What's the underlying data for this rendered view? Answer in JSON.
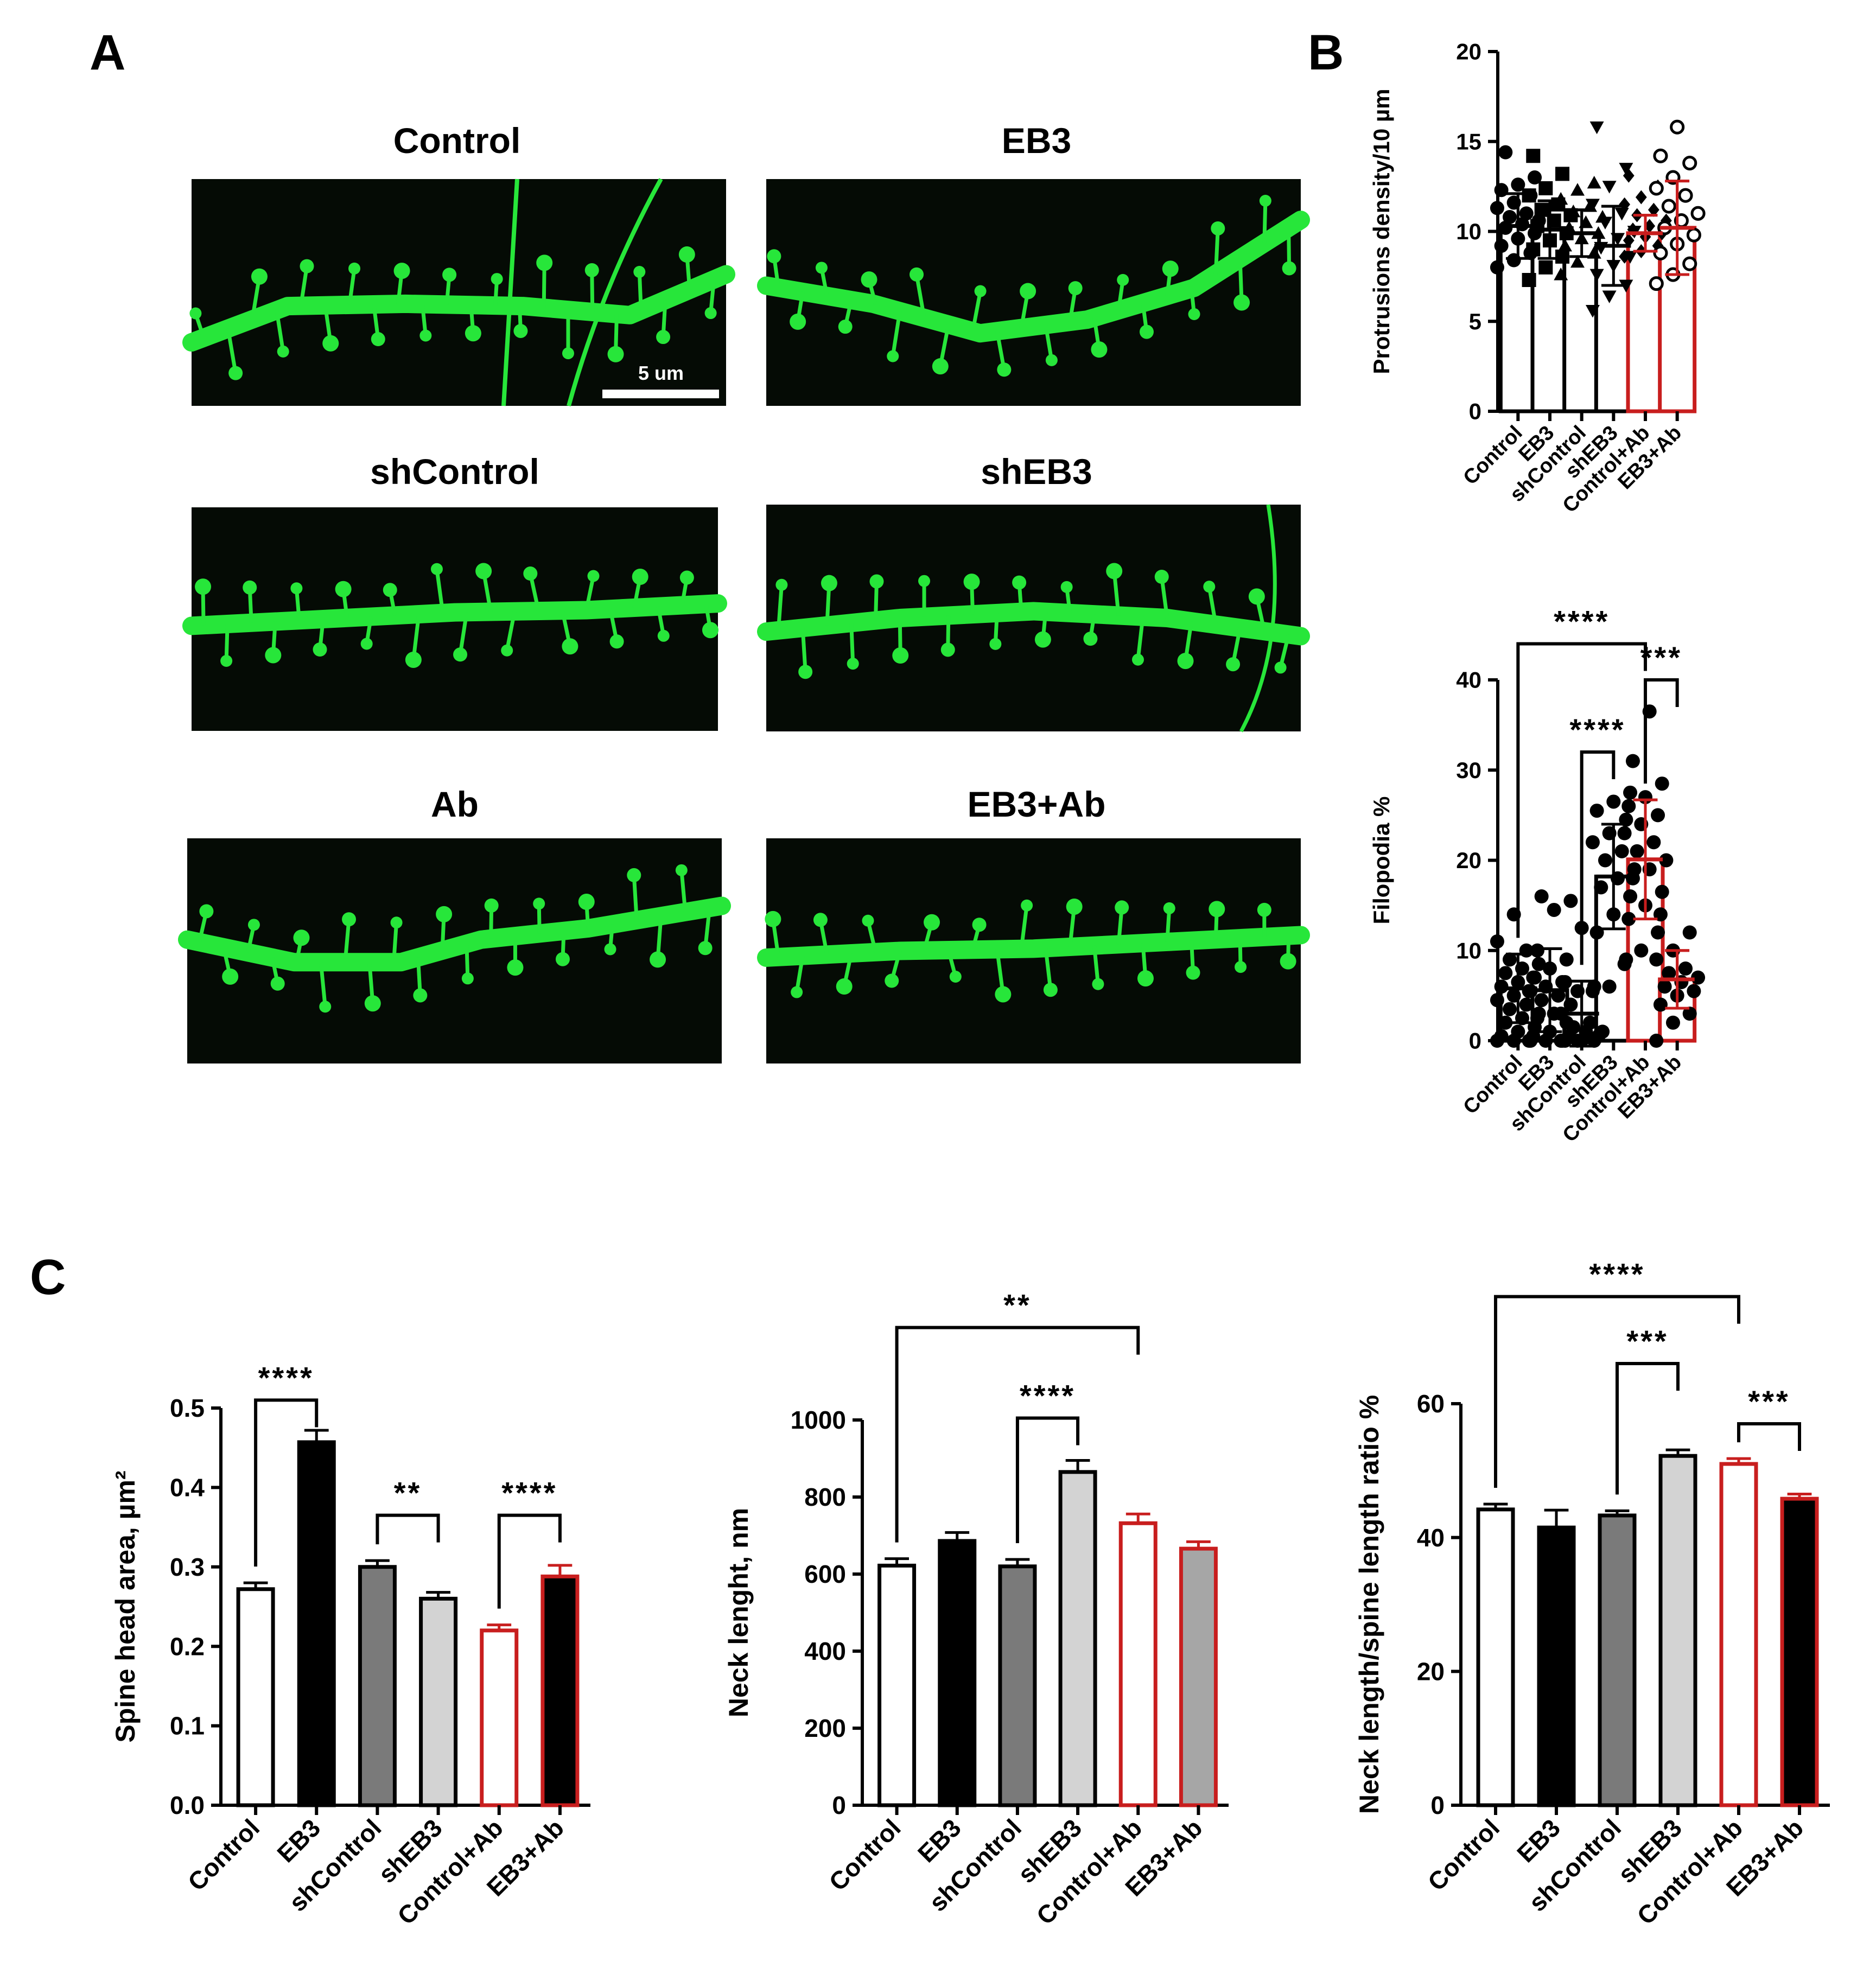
{
  "panels": {
    "A": {
      "letter": "A",
      "images": [
        {
          "label": "Control",
          "scale_bar": "5 um"
        },
        {
          "label": "EB3"
        },
        {
          "label": "shControl"
        },
        {
          "label": "shEB3"
        },
        {
          "label": "Ab"
        },
        {
          "label": "EB3+Ab"
        }
      ]
    },
    "B": {
      "letter": "B"
    },
    "C": {
      "letter": "C"
    }
  },
  "colors": {
    "image_bg": "#050b05",
    "dendrite": "#27e63a",
    "black": "#000000",
    "red": "#c81e1e",
    "white": "#ffffff",
    "dark_gray": "#7a7a7a",
    "light_gray": "#d3d3d3",
    "mid_gray": "#a6a6a6"
  },
  "chart_data": [
    {
      "id": "protrusions",
      "type": "bar",
      "categories": [
        "Control",
        "EB3",
        "shControl",
        "shEB3",
        "Control+Ab",
        "EB3+Ab"
      ],
      "values": [
        10.3,
        10.1,
        9.9,
        9.2,
        9.9,
        10.2
      ],
      "errors": [
        1.8,
        1.6,
        1.3,
        2.2,
        1.0,
        2.6
      ],
      "ylabel": "Protrusions density/10 µm",
      "ylim": [
        0,
        20
      ],
      "yticks": [
        0,
        5,
        10,
        15,
        20
      ],
      "bar_style": [
        "open-black",
        "open-black",
        "open-black",
        "open-black",
        "open-red",
        "open-red"
      ],
      "markers": [
        "circle",
        "square",
        "triangle",
        "triangle-down",
        "diamond",
        "open-circle"
      ],
      "points": [
        [
          8.0,
          8.4,
          8.8,
          9.2,
          9.6,
          9.9,
          10.2,
          10.4,
          10.6,
          10.8,
          11.0,
          11.3,
          11.6,
          12.0,
          12.3,
          12.6,
          13.0,
          14.4
        ],
        [
          7.3,
          8.0,
          8.6,
          9.0,
          9.5,
          9.9,
          10.3,
          10.6,
          10.9,
          11.2,
          11.5,
          12.0,
          12.4,
          13.2,
          14.2
        ],
        [
          7.6,
          8.3,
          8.8,
          9.2,
          9.6,
          9.9,
          10.2,
          10.5,
          10.8,
          11.1,
          11.4,
          11.8,
          12.3,
          12.7
        ],
        [
          5.6,
          6.4,
          7.0,
          7.6,
          8.1,
          8.6,
          9.1,
          9.6,
          10.0,
          10.5,
          11.0,
          11.5,
          12.5,
          13.5,
          15.8
        ],
        [
          8.6,
          8.9,
          9.2,
          9.5,
          9.7,
          9.9,
          10.1,
          10.3,
          10.6,
          10.9,
          11.2,
          11.5,
          11.9,
          12.5,
          13.1
        ],
        [
          7.1,
          7.6,
          8.2,
          8.8,
          9.3,
          9.8,
          10.2,
          10.6,
          11.0,
          11.4,
          12.0,
          12.4,
          13.0,
          13.8,
          14.2,
          15.8
        ]
      ]
    },
    {
      "id": "filopodia",
      "type": "bar",
      "categories": [
        "Control",
        "EB3",
        "shControl",
        "shEB3",
        "Control+Ab",
        "EB3+Ab"
      ],
      "values": [
        5.8,
        5.6,
        3.0,
        18.2,
        20.1,
        6.8
      ],
      "errors": [
        3.8,
        4.6,
        3.6,
        5.8,
        6.6,
        3.2
      ],
      "ylabel": "Filopodia %",
      "ylim": [
        0,
        40
      ],
      "yticks": [
        0,
        10,
        20,
        30,
        40
      ],
      "bar_style": [
        "open-black",
        "open-black",
        "open-black",
        "open-black",
        "open-red",
        "open-red"
      ],
      "markers": [
        "circle",
        "circle",
        "circle",
        "circle",
        "circle",
        "circle"
      ],
      "points": [
        [
          0,
          0,
          0,
          0.5,
          1,
          1.5,
          2,
          2.5,
          3,
          3.5,
          4,
          4.5,
          5,
          5.5,
          6,
          6.5,
          7,
          7.5,
          8,
          8.5,
          9,
          10,
          11,
          14
        ],
        [
          0,
          0,
          0,
          0.5,
          1,
          2,
          2.5,
          3,
          4,
          4.5,
          5,
          5.5,
          6,
          6.5,
          7,
          8,
          9,
          10,
          14.5,
          15.5,
          16
        ],
        [
          0,
          0,
          0,
          0,
          0,
          0.5,
          0.5,
          1,
          1,
          1.5,
          2,
          3,
          5.5,
          6,
          6.5,
          12.5
        ],
        [
          5.5,
          6,
          9,
          12,
          14,
          16,
          17,
          18,
          19,
          20,
          21,
          22,
          23,
          24.5,
          25.5,
          26.5,
          27.5
        ],
        [
          8.5,
          10,
          12,
          13.5,
          15,
          16.5,
          18,
          19,
          20,
          21,
          22,
          23,
          24,
          25,
          26,
          27,
          28.5,
          31,
          36.5
        ],
        [
          0,
          2,
          3,
          4,
          5,
          5.5,
          6,
          6.5,
          7,
          7.5,
          8,
          9,
          10,
          12,
          14
        ]
      ],
      "significance": [
        {
          "from": 0,
          "to": 4,
          "label": "****",
          "level": 44
        },
        {
          "from": 2,
          "to": 3,
          "label": "****",
          "level": 32
        },
        {
          "from": 4,
          "to": 5,
          "label": "***",
          "level": 40
        }
      ]
    },
    {
      "id": "spine_head_area",
      "type": "bar",
      "categories": [
        "Control",
        "EB3",
        "shControl",
        "shEB3",
        "Control+Ab",
        "EB3+Ab"
      ],
      "values": [
        0.272,
        0.457,
        0.3,
        0.26,
        0.22,
        0.288
      ],
      "errors": [
        0.008,
        0.015,
        0.008,
        0.008,
        0.007,
        0.014
      ],
      "ylabel": "Spine head area, µm²",
      "ylim": [
        0,
        0.5
      ],
      "yticks": [
        "0.0",
        "0.1",
        "0.2",
        "0.3",
        "0.4",
        "0.5"
      ],
      "bar_style": [
        "white",
        "black",
        "dark_gray",
        "light_gray",
        "open-red",
        "black-red"
      ],
      "significance": [
        {
          "from": 0,
          "to": 1,
          "label": "****",
          "level": 0.51
        },
        {
          "from": 2,
          "to": 3,
          "label": "**",
          "level": 0.365
        },
        {
          "from": 4,
          "to": 5,
          "label": "****",
          "level": 0.365
        }
      ]
    },
    {
      "id": "neck_length",
      "type": "bar",
      "categories": [
        "Control",
        "EB3",
        "shControl",
        "shEB3",
        "Control+Ab",
        "EB3+Ab"
      ],
      "values": [
        622,
        686,
        620,
        865,
        732,
        666
      ],
      "errors": [
        18,
        22,
        18,
        30,
        24,
        18
      ],
      "ylabel": "Neck lenght, nm",
      "ylim": [
        0,
        1000
      ],
      "yticks": [
        0,
        200,
        400,
        600,
        800,
        1000
      ],
      "bar_style": [
        "white",
        "black",
        "dark_gray",
        "light_gray",
        "open-red",
        "gray-red"
      ],
      "significance": [
        {
          "from": 0,
          "to": 4,
          "label": "**",
          "level": 1240
        },
        {
          "from": 2,
          "to": 3,
          "label": "****",
          "level": 1005
        }
      ]
    },
    {
      "id": "neck_ratio",
      "type": "bar",
      "categories": [
        "Control",
        "EB3",
        "shControl",
        "shEB3",
        "Control+Ab",
        "EB3+Ab"
      ],
      "values": [
        44.2,
        41.5,
        43.3,
        52.2,
        51.0,
        45.8
      ],
      "errors": [
        0.8,
        2.6,
        0.7,
        0.9,
        0.8,
        0.7
      ],
      "ylabel": "Neck length/spine length ratio %",
      "ylim": [
        0,
        60
      ],
      "yticks": [
        0,
        20,
        40,
        60
      ],
      "bar_style": [
        "white",
        "black",
        "dark_gray",
        "light_gray",
        "open-red",
        "black-red"
      ],
      "significance": [
        {
          "from": 0,
          "to": 4,
          "label": "****",
          "level": 76
        },
        {
          "from": 2,
          "to": 3,
          "label": "***",
          "level": 66
        },
        {
          "from": 4,
          "to": 5,
          "label": "***",
          "level": 57
        }
      ]
    }
  ]
}
